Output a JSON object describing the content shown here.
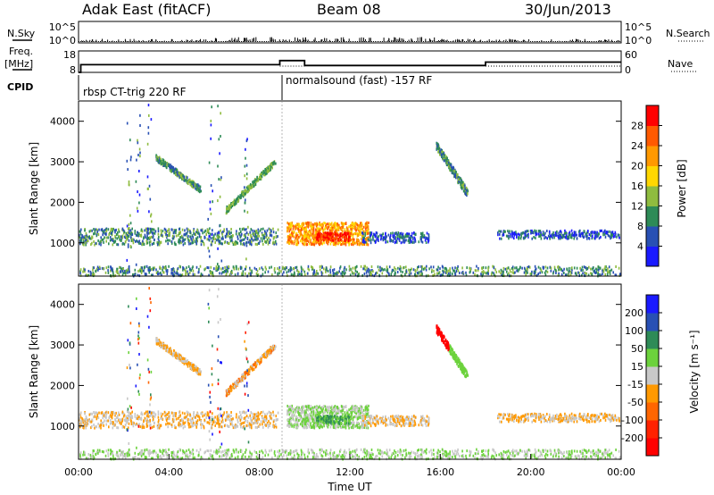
{
  "header": {
    "station": "Adak East (fitACF)",
    "beam": "Beam 08",
    "date": "30/Jun/2013"
  },
  "side_labels": {
    "nsky": "N.Sky",
    "freq_line1": "Freq.",
    "freq_line2": "[MHz]",
    "cpid": "CPID",
    "nsearch": "N.Search",
    "nave": "Nave"
  },
  "cpid_labels": [
    "rbsp CT-trig 220 RF",
    "normalsound (fast) -157 RF"
  ],
  "chart_data": [
    {
      "type": "line",
      "panel": "noise",
      "yticks_left": [
        "10^5",
        "10^0"
      ],
      "yticks_right": [
        "10^5",
        "10^0"
      ]
    },
    {
      "type": "line",
      "panel": "frequency",
      "yticks_left": [
        "18",
        "8"
      ],
      "yticks_right": [
        "60",
        "0"
      ],
      "series": [
        {
          "x": [
            0,
            0.1,
            0.1,
            8.9,
            8.9,
            10.0,
            10.0,
            18.0,
            18.0,
            24
          ],
          "values": [
            8,
            8,
            11.6,
            11.6,
            13.5,
            13.5,
            11.2,
            11.2,
            12.8,
            12.8
          ]
        }
      ],
      "ylim": [
        8,
        18
      ]
    },
    {
      "type": "heatmap",
      "panel": "power",
      "ylabel": "Slant Range [km]",
      "yticks": [
        "1000",
        "2000",
        "3000",
        "4000"
      ],
      "ylim": [
        180,
        4500
      ],
      "xlim": [
        0,
        24
      ],
      "colorbar": {
        "label": "Power [dB]",
        "ticks": [
          "4",
          "8",
          "12",
          "16",
          "20",
          "24",
          "28"
        ],
        "colors": [
          "#1a1aff",
          "#2850b4",
          "#2e8b57",
          "#8fbc3f",
          "#ffd700",
          "#ff9900",
          "#ff5a00",
          "#ff0000"
        ]
      }
    },
    {
      "type": "heatmap",
      "panel": "velocity",
      "ylabel": "Slant Range [km]",
      "yticks": [
        "1000",
        "2000",
        "3000",
        "4000"
      ],
      "ylim": [
        180,
        4500
      ],
      "xlim": [
        0,
        24
      ],
      "xlabel": "Time UT",
      "xticks": [
        "00:00",
        "04:00",
        "08:00",
        "12:00",
        "16:00",
        "20:00",
        "00:00"
      ],
      "colorbar": {
        "label": "Velocity [m s⁻¹]",
        "ticks": [
          "200",
          "100",
          "50",
          "15",
          "-15",
          "-50",
          "-100",
          "-200"
        ],
        "colors": [
          "#1a1aff",
          "#2850b4",
          "#2e8b57",
          "#6cd23c",
          "#c8c8c8",
          "#ff9900",
          "#ff6600",
          "#ff2200",
          "#ff0000"
        ]
      }
    }
  ]
}
